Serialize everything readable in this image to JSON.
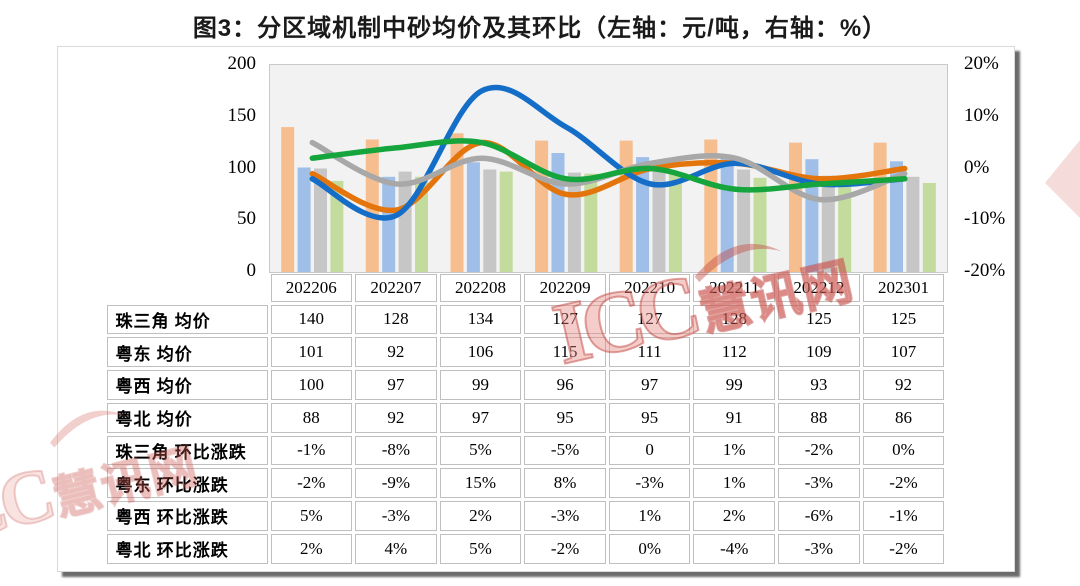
{
  "title": "图3：分区域机制中砂均价及其环比（左轴：元/吨，右轴：%）",
  "watermarks": {
    "center_latin": "ICC",
    "center_cjk": "慧讯网",
    "bottom_left_latin": "ICC",
    "bottom_left_cjk": "慧讯网",
    "color": "#C1483F"
  },
  "chart_data": {
    "type": "bar+line",
    "title": "分区域机制中砂均价及其环比",
    "categories": [
      "202206",
      "202207",
      "202208",
      "202209",
      "202210",
      "202211",
      "202212",
      "202301"
    ],
    "left_axis": {
      "ticks": [
        "200",
        "150",
        "100",
        "50",
        "0"
      ],
      "min": 0,
      "max": 200,
      "unit": "元/吨"
    },
    "right_axis": {
      "ticks": [
        "20%",
        "10%",
        "0%",
        "-10%",
        "-20%"
      ],
      "min": -20,
      "max": 20,
      "unit": "%"
    },
    "plot_bg": "#F2F2F2",
    "grid": false,
    "legend": "none",
    "bar_series": [
      {
        "name": "珠三角 均价",
        "color": "#F6BE8E",
        "values": [
          140,
          128,
          134,
          127,
          127,
          128,
          125,
          125
        ]
      },
      {
        "name": "粤东 均价",
        "color": "#9FBEE8",
        "values": [
          101,
          92,
          106,
          115,
          111,
          112,
          109,
          107
        ]
      },
      {
        "name": "粤西 均价",
        "color": "#C6C6C6",
        "values": [
          100,
          97,
          99,
          96,
          97,
          99,
          93,
          92
        ]
      },
      {
        "name": "粤北 均价",
        "color": "#C3DC9E",
        "values": [
          88,
          92,
          97,
          95,
          95,
          91,
          88,
          86
        ]
      }
    ],
    "line_series": [
      {
        "name": "珠三角 环比涨跌",
        "color": "#E3750C",
        "values": [
          -1,
          -8,
          5,
          -5,
          0,
          1,
          -2,
          0
        ]
      },
      {
        "name": "粤东 环比涨跌",
        "color": "#146EC8",
        "values": [
          -2,
          -9,
          15,
          8,
          -3,
          1,
          -3,
          -2
        ]
      },
      {
        "name": "粤西 环比涨跌",
        "color": "#A8A8A8",
        "values": [
          5,
          -3,
          2,
          -3,
          1,
          2,
          -6,
          -1
        ]
      },
      {
        "name": "粤北 环比涨跌",
        "color": "#16A53C",
        "values": [
          2,
          4,
          5,
          -2,
          0,
          -4,
          -3,
          -2
        ]
      }
    ]
  },
  "table": {
    "header": [
      "202206",
      "202207",
      "202208",
      "202209",
      "202210",
      "202211",
      "202212",
      "202301"
    ],
    "rows": [
      {
        "label": "珠三角 均价",
        "values": [
          "140",
          "128",
          "134",
          "127",
          "127",
          "128",
          "125",
          "125"
        ]
      },
      {
        "label": "粤东 均价",
        "values": [
          "101",
          "92",
          "106",
          "115",
          "111",
          "112",
          "109",
          "107"
        ]
      },
      {
        "label": "粤西 均价",
        "values": [
          "100",
          "97",
          "99",
          "96",
          "97",
          "99",
          "93",
          "92"
        ]
      },
      {
        "label": "粤北 均价",
        "values": [
          "88",
          "92",
          "97",
          "95",
          "95",
          "91",
          "88",
          "86"
        ]
      },
      {
        "label": "珠三角 环比涨跌",
        "values": [
          "-1%",
          "-8%",
          "5%",
          "-5%",
          "0",
          "1%",
          "-2%",
          "0%"
        ]
      },
      {
        "label": "粤东 环比涨跌",
        "values": [
          "-2%",
          "-9%",
          "15%",
          "8%",
          "-3%",
          "1%",
          "-3%",
          "-2%"
        ]
      },
      {
        "label": "粤西 环比涨跌",
        "values": [
          "5%",
          "-3%",
          "2%",
          "-3%",
          "1%",
          "2%",
          "-6%",
          "-1%"
        ]
      },
      {
        "label": "粤北 环比涨跌",
        "values": [
          "2%",
          "4%",
          "5%",
          "-2%",
          "0%",
          "-4%",
          "-3%",
          "-2%"
        ]
      }
    ]
  }
}
